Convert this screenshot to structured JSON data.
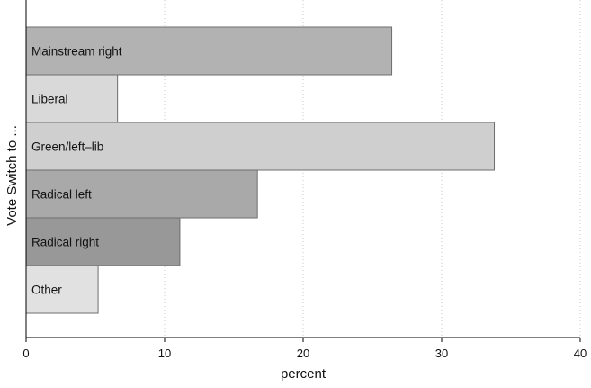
{
  "chart_data": {
    "type": "bar",
    "orientation": "horizontal",
    "categories": [
      "Mainstream right",
      "Liberal",
      "Green/left–lib",
      "Radical left",
      "Radical right",
      "Other"
    ],
    "values": [
      26.4,
      6.6,
      33.8,
      16.7,
      11.1,
      5.2
    ],
    "bar_colors": [
      "#b2b2b2",
      "#d9d9d9",
      "#cfcfcf",
      "#a9a9a9",
      "#989898",
      "#e1e1e1"
    ],
    "xlabel": "percent",
    "ylabel": "Vote Switch to ...",
    "xlim": [
      0,
      40
    ],
    "xticks": [
      0,
      10,
      20,
      30,
      40
    ],
    "grid": true,
    "legend": "none"
  }
}
